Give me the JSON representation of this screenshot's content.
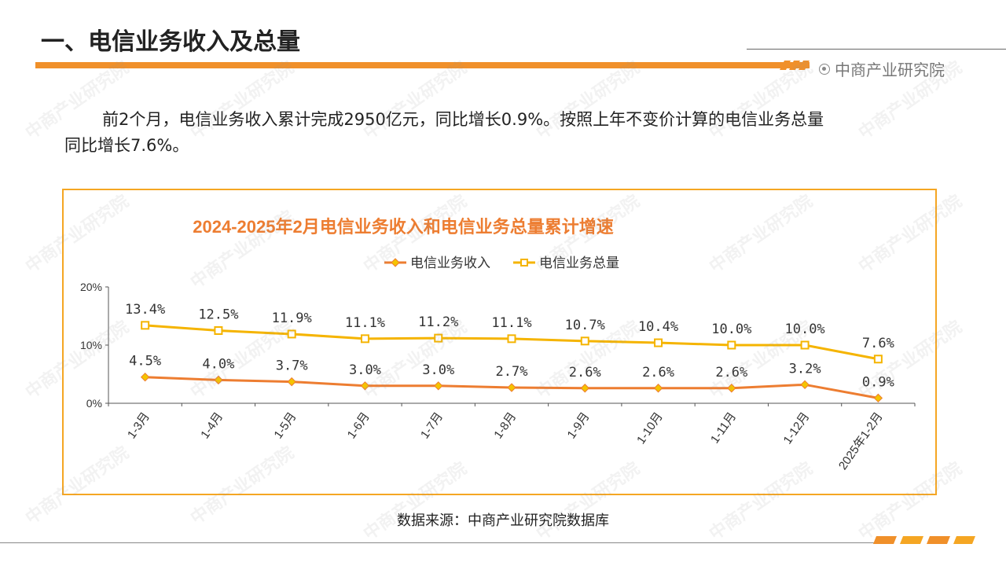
{
  "header": {
    "title": "一、电信业务收入及总量",
    "brand": "中商产业研究院"
  },
  "intro": {
    "line1": "前2个月，电信业务收入累计完成2950亿元，同比增长0.9%。按照上年不变价计算的电信业务总量",
    "line2": "同比增长7.6%。"
  },
  "source": "数据来源：中商产业研究院数据库",
  "colors": {
    "accent": "#f0902a",
    "revenue_line": "#ed7d31",
    "volume_line": "#f5b400",
    "frame": "#f5a623",
    "title_text": "#ed7d31"
  },
  "chart_data": {
    "type": "line",
    "title": "2024-2025年2月电信业务收入和电信业务总量累计增速",
    "categories": [
      "1-3月",
      "1-4月",
      "1-5月",
      "1-6月",
      "1-7月",
      "1-8月",
      "1-9月",
      "1-10月",
      "1-11月",
      "1-12月",
      "2025年1-2月"
    ],
    "series": [
      {
        "name": "电信业务收入",
        "marker": "diamond",
        "values": [
          4.5,
          4.0,
          3.7,
          3.0,
          3.0,
          2.7,
          2.6,
          2.6,
          2.6,
          3.2,
          0.9
        ],
        "labels": [
          "4.5%",
          "4.0%",
          "3.7%",
          "3.0%",
          "3.0%",
          "2.7%",
          "2.6%",
          "2.6%",
          "2.6%",
          "3.2%",
          "0.9%"
        ]
      },
      {
        "name": "电信业务总量",
        "marker": "square",
        "values": [
          13.4,
          12.5,
          11.9,
          11.1,
          11.2,
          11.1,
          10.7,
          10.4,
          10.0,
          10.0,
          7.6
        ],
        "labels": [
          "13.4%",
          "12.5%",
          "11.9%",
          "11.1%",
          "11.2%",
          "11.1%",
          "10.7%",
          "10.4%",
          "10.0%",
          "10.0%",
          "7.6%"
        ]
      }
    ],
    "y_ticks": [
      "0%",
      "10%",
      "20%"
    ],
    "ylim": [
      0,
      20
    ],
    "legend": "top-center",
    "grid": false
  }
}
